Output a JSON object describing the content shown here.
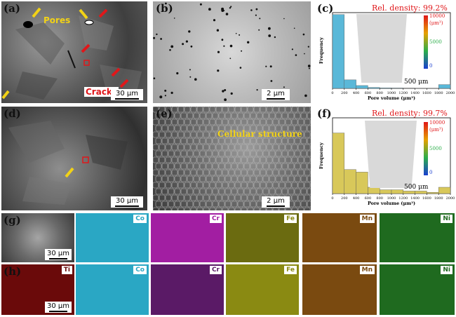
{
  "panels": {
    "a": {
      "label": "(a)",
      "pores": "Pores",
      "cracks": "Cracks",
      "scale": "30 μm"
    },
    "b": {
      "label": "(b)",
      "scale": "2 μm"
    },
    "c": {
      "label": "(c)",
      "density": "Rel. density: 99.2%",
      "colorbar_ticks": [
        "10000",
        "(μm³)",
        "5000",
        "0"
      ],
      "inset_scale": "500 μm"
    },
    "d": {
      "label": "(d)",
      "scale": "30 μm"
    },
    "e": {
      "label": "(e)",
      "annotation": "Cellular structure",
      "scale": "2 μm"
    },
    "f": {
      "label": "(f)",
      "density": "Rel. density: 99.7%",
      "colorbar_ticks": [
        "10000",
        "(μm³)",
        "5000",
        "0"
      ],
      "inset_scale": "500 μm"
    },
    "g": {
      "label": "(g)",
      "scale": "30 μm",
      "elements": [
        "Co",
        "Cr",
        "Fe",
        "Mn",
        "Ni"
      ]
    },
    "h": {
      "label": "(h)",
      "scale": "30 μm",
      "elements": [
        "Ti",
        "Co",
        "Cr",
        "Fe",
        "Mn",
        "Ni"
      ]
    }
  },
  "map_colors": {
    "Co": "#2aa7c4",
    "Cr_g": "#a21ea2",
    "Cr_h": "#5a1a66",
    "Fe_g": "#6b6b10",
    "Fe_h": "#8a8a12",
    "Mn": "#7a4a10",
    "Ni": "#1f6a1f",
    "Ti": "#6a0a0a"
  },
  "chart_data": [
    {
      "type": "bar",
      "panel": "c",
      "xlabel": "Pore volume (μm³)",
      "ylabel": "Frequency",
      "x_ticks": [
        "0",
        "200",
        "400",
        "600",
        "800",
        "1000",
        "1200",
        "1400",
        "1600",
        "1800",
        "2000"
      ],
      "bar_color": "#5ab8d8",
      "bins": [
        [
          0,
          200
        ],
        [
          200,
          400
        ],
        [
          400,
          600
        ],
        [
          600,
          800
        ],
        [
          800,
          1000
        ],
        [
          1000,
          1200
        ],
        [
          1200,
          1400
        ],
        [
          1400,
          1600
        ],
        [
          1600,
          1800
        ],
        [
          1800,
          2000
        ]
      ],
      "values": [
        0.78,
        0.09,
        0.03,
        0.01,
        0.005,
        0.004,
        0.003,
        0.002,
        0.002,
        0.04
      ],
      "ylim": [
        0,
        0.8
      ]
    },
    {
      "type": "bar",
      "panel": "f",
      "xlabel": "Pore volume (μm³)",
      "ylabel": "Frequency",
      "x_ticks": [
        "0",
        "200",
        "400",
        "600",
        "800",
        "1000",
        "1200",
        "1400",
        "1600",
        "1800",
        "2000"
      ],
      "bar_color": "#d8c85a",
      "bins": [
        [
          0,
          200
        ],
        [
          200,
          400
        ],
        [
          400,
          600
        ],
        [
          600,
          800
        ],
        [
          800,
          1000
        ],
        [
          1000,
          1200
        ],
        [
          1200,
          1400
        ],
        [
          1400,
          1600
        ],
        [
          1600,
          1800
        ],
        [
          1800,
          2000
        ]
      ],
      "values": [
        0.48,
        0.19,
        0.17,
        0.05,
        0.03,
        0.03,
        0.02,
        0.02,
        0.01,
        0.05
      ],
      "ylim": [
        0,
        0.6
      ]
    }
  ]
}
